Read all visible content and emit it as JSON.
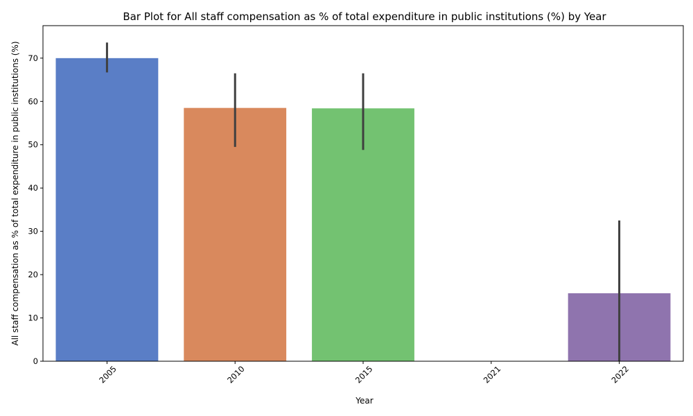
{
  "chart_data": {
    "type": "bar",
    "title": "Bar Plot for All staff compensation as % of total expenditure in public institutions (%) by Year",
    "xlabel": "Year",
    "ylabel": "All staff compensation as % of total expenditure in public institutions (%)",
    "categories": [
      "2005",
      "2010",
      "2015",
      "2021",
      "2022"
    ],
    "values": [
      70.0,
      58.5,
      58.4,
      null,
      15.7
    ],
    "error_low": [
      66.7,
      49.5,
      48.8,
      null,
      0
    ],
    "error_high": [
      73.6,
      66.5,
      66.5,
      null,
      32.5
    ],
    "colors": [
      "#5a7ec6",
      "#d9895d",
      "#73c271",
      null,
      "#8f74ae"
    ],
    "error_color": "#3f3f3f",
    "ylim": [
      0,
      77.5
    ],
    "yticks": [
      0,
      10,
      20,
      30,
      40,
      50,
      60,
      70
    ],
    "grid": false,
    "legend": false
  }
}
